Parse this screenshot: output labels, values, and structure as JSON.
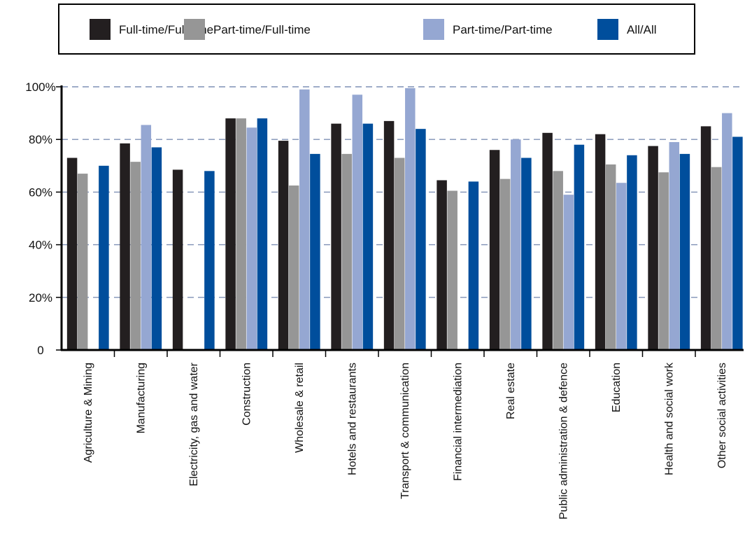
{
  "chart_data": {
    "type": "bar",
    "title": "",
    "xlabel": "",
    "ylabel": "",
    "ylim": [
      0,
      100
    ],
    "yticks": [
      {
        "value": 0,
        "label": "0"
      },
      {
        "value": 20,
        "label": "20%"
      },
      {
        "value": 40,
        "label": "40%"
      },
      {
        "value": 60,
        "label": "60%"
      },
      {
        "value": 80,
        "label": "80%"
      },
      {
        "value": 100,
        "label": "100%"
      }
    ],
    "grid": "horizontal-dashed",
    "legend_position": "top",
    "categories": [
      "Agriculture & Mining",
      "Manufacturing",
      "Electricity, gas and water",
      "Construction",
      "Wholesale & retail",
      "Hotels and restaurants",
      "Transport & communication",
      "Financial intermediation",
      "Real estate",
      "Public administration & defence",
      "Education",
      "Health and social work",
      "Other social activities"
    ],
    "series": [
      {
        "name": "Full-time/Full-time",
        "color": "#231f20",
        "values": [
          73,
          78.5,
          68.5,
          88,
          79.5,
          86,
          87,
          64.5,
          76,
          82.5,
          82,
          77.5,
          85
        ]
      },
      {
        "name": "Part-time/Full-time",
        "color": "#969696",
        "values": [
          67,
          71.5,
          null,
          88,
          62.5,
          74.5,
          73,
          60.5,
          65,
          68,
          70.5,
          67.5,
          69.5
        ]
      },
      {
        "name": "Part-time/Part-time",
        "color": "#95a7d2",
        "values": [
          null,
          85.5,
          null,
          84.5,
          99,
          97,
          99.5,
          null,
          80,
          59,
          63.5,
          79,
          90
        ]
      },
      {
        "name": "All/All",
        "color": "#004e9c",
        "values": [
          70,
          77,
          68,
          88,
          74.5,
          86,
          84,
          64,
          73,
          78,
          74,
          74.5,
          81
        ]
      }
    ]
  }
}
